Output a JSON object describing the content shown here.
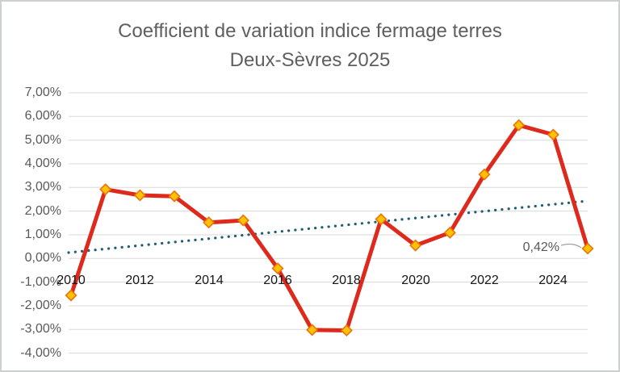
{
  "title": {
    "line1": "Coefficient de variation indice fermage terres",
    "line2": "Deux-Sèvres 2025"
  },
  "chart_data": {
    "type": "line",
    "title": "Coefficient de variation indice fermage terres Deux-Sèvres 2025",
    "x": [
      2010,
      2011,
      2012,
      2013,
      2014,
      2015,
      2016,
      2017,
      2018,
      2019,
      2020,
      2021,
      2022,
      2023,
      2024,
      2025
    ],
    "series": [
      {
        "name": "",
        "values": [
          -1.56,
          2.92,
          2.67,
          2.63,
          1.52,
          1.61,
          -0.42,
          -3.02,
          -3.04,
          1.66,
          0.55,
          1.09,
          3.55,
          5.63,
          5.23,
          0.42
        ],
        "marker": "diamond"
      }
    ],
    "trendline": {
      "style": "dotted",
      "start_value": 0.25,
      "end_value": 2.43
    },
    "y_axis": {
      "min": -4,
      "max": 7,
      "step": 1,
      "ticks": [
        "7,00%",
        "6,00%",
        "5,00%",
        "4,00%",
        "3,00%",
        "2,00%",
        "1,00%",
        "0,00%",
        "-1,00%",
        "-2,00%",
        "-3,00%",
        "-4,00%"
      ]
    },
    "x_axis": {
      "tick_labels": [
        "2010",
        "2012",
        "2014",
        "2016",
        "2018",
        "2020",
        "2022",
        "2024"
      ]
    },
    "data_label": {
      "text": "0,42%",
      "year": 2025,
      "value": 0.42
    },
    "grid": true,
    "legend": false
  },
  "colors": {
    "line": "#dd2a1c",
    "marker_fill": "#ffc103",
    "marker_stroke": "#e8740c",
    "trendline": "#1e5f73",
    "gridline": "#d8d8d8",
    "title_text": "#5f5f5f",
    "y_label_text": "#595959",
    "x_label_text": "#161616",
    "leader": "#a0a0a0",
    "border": "#cdd0d1"
  }
}
